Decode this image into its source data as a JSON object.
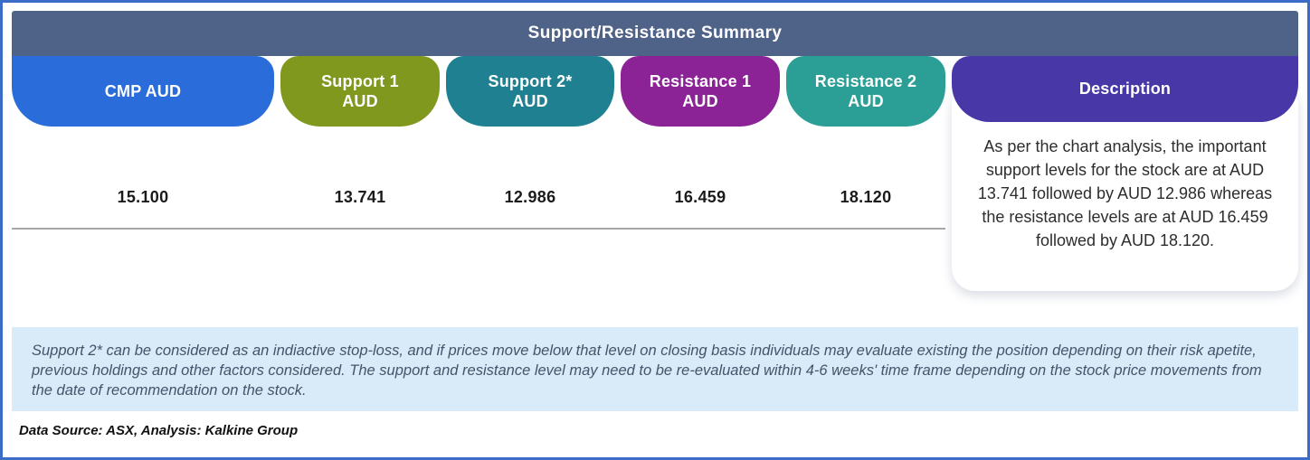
{
  "title": "Support/Resistance Summary",
  "columns": [
    {
      "label_line1": "CMP AUD",
      "value": "15.100",
      "color": "#2a6cd9"
    },
    {
      "label_line1": "Support 1",
      "label_line2": "AUD",
      "value": "13.741",
      "color": "#81981f"
    },
    {
      "label_line1": "Support 2*",
      "label_line2": "AUD",
      "value": "12.986",
      "color": "#1e8091"
    },
    {
      "label_line1": "Resistance 1",
      "label_line2": "AUD",
      "value": "16.459",
      "color": "#8b2397"
    },
    {
      "label_line1": "Resistance 2",
      "label_line2": "AUD",
      "value": "18.120",
      "color": "#2b9e95"
    }
  ],
  "description": {
    "label": "Description",
    "color": "#4737a7",
    "text": "As per the chart analysis, the important support levels for the stock are at AUD 13.741 followed by AUD 12.986 whereas the resistance levels are at AUD 16.459 followed by AUD 18.120."
  },
  "footnote": "Support 2* can be considered as an indiactive stop-loss, and if prices move below that level on closing basis individuals may evaluate existing the position depending on their risk apetite, previous holdings and other factors considered. The support and resistance level may need to be re-evaluated within 4-6 weeks' time frame depending on the stock price movements from  the date of recommendation on the stock.",
  "source": "Data Source: ASX, Analysis: Kalkine Group",
  "colors": {
    "frame_border": "#3b6cc7",
    "header_bar": "#4f6288",
    "note_background": "#d9eaf8",
    "divider": "#a8a8a8"
  },
  "chart_data": {
    "type": "table",
    "title": "Support/Resistance Summary",
    "columns": [
      "CMP AUD",
      "Support 1 AUD",
      "Support 2* AUD",
      "Resistance 1 AUD",
      "Resistance 2 AUD",
      "Description"
    ],
    "rows": [
      [
        "15.100",
        "13.741",
        "12.986",
        "16.459",
        "18.120",
        "As per the chart analysis, the important support levels for the stock are at AUD 13.741 followed by AUD 12.986 whereas the resistance levels are at AUD 16.459 followed by AUD 18.120."
      ]
    ]
  }
}
